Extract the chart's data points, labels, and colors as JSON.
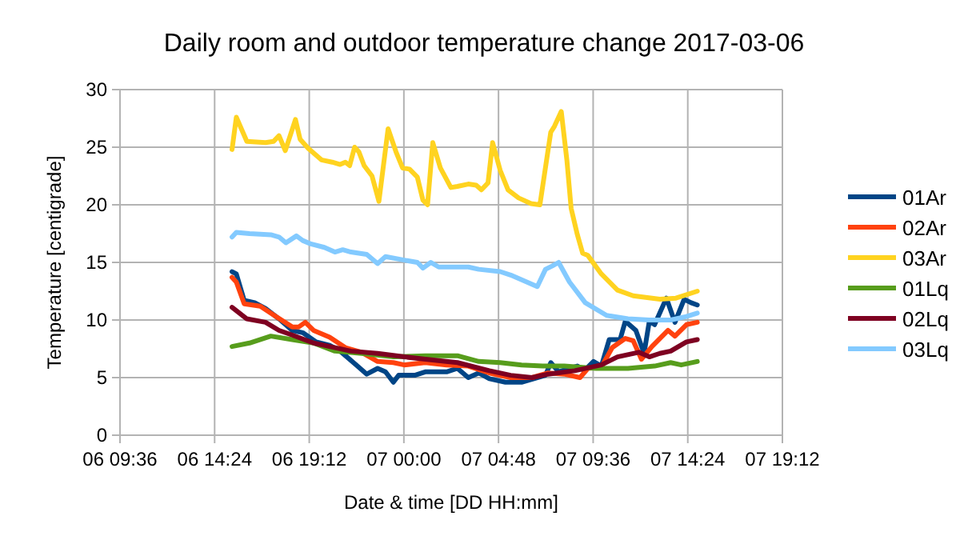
{
  "chart_data": {
    "type": "line",
    "title": "Daily room and outdoor temperature change 2017-03-06",
    "xlabel": "Date & time [DD HH:mm]",
    "ylabel": "Temperature [centigrade]",
    "xlim": [
      "2017-03-06T09:36",
      "2017-03-07T19:12"
    ],
    "xticks": [
      {
        "value": "2017-03-06T09:36",
        "label": "06 09:36"
      },
      {
        "value": "2017-03-06T14:24",
        "label": "06 14:24"
      },
      {
        "value": "2017-03-06T19:12",
        "label": "06 19:12"
      },
      {
        "value": "2017-03-07T00:00",
        "label": "07 00:00"
      },
      {
        "value": "2017-03-07T04:48",
        "label": "07 04:48"
      },
      {
        "value": "2017-03-07T09:36",
        "label": "07 09:36"
      },
      {
        "value": "2017-03-07T14:24",
        "label": "07 14:24"
      },
      {
        "value": "2017-03-07T19:12",
        "label": "07 19:12"
      }
    ],
    "ylim": [
      0,
      30
    ],
    "yticks": [
      0,
      5,
      10,
      15,
      20,
      25,
      30
    ],
    "grid": true,
    "legend": "right",
    "marker": "none",
    "line_style": "solid",
    "series": [
      {
        "name": "01Ar",
        "color": "#004586",
        "x": [
          "2017-03-06T15:17",
          "2017-03-06T15:30",
          "2017-03-06T15:54",
          "2017-03-06T16:26",
          "2017-03-06T16:59",
          "2017-03-06T17:40",
          "2017-03-06T18:20",
          "2017-03-06T18:52",
          "2017-03-06T19:33",
          "2017-03-06T20:14",
          "2017-03-06T20:46",
          "2017-03-06T21:35",
          "2017-03-06T22:07",
          "2017-03-06T22:40",
          "2017-03-06T23:04",
          "2017-03-06T23:28",
          "2017-03-06T23:44",
          "2017-03-07T00:33",
          "2017-03-07T01:05",
          "2017-03-07T02:10",
          "2017-03-07T02:43",
          "2017-03-07T03:16",
          "2017-03-07T03:48",
          "2017-03-07T04:20",
          "2017-03-07T05:09",
          "2017-03-07T05:58",
          "2017-03-07T06:46",
          "2017-03-07T07:11",
          "2017-03-07T07:27",
          "2017-03-07T07:51",
          "2017-03-07T08:24",
          "2017-03-07T08:48",
          "2017-03-07T09:09",
          "2017-03-07T09:37",
          "2017-03-07T10:01",
          "2017-03-07T10:25",
          "2017-03-07T10:58",
          "2017-03-07T11:14",
          "2017-03-07T11:46",
          "2017-03-07T12:11",
          "2017-03-07T12:27",
          "2017-03-07T12:43",
          "2017-03-07T13:19",
          "2017-03-07T13:45",
          "2017-03-07T14:13",
          "2017-03-07T14:34",
          "2017-03-07T14:53"
        ],
        "values": [
          14.2,
          14.0,
          11.7,
          11.5,
          11.0,
          10.1,
          9.1,
          8.9,
          8.1,
          7.8,
          7.3,
          6.1,
          5.3,
          5.8,
          5.5,
          4.6,
          5.2,
          5.2,
          5.5,
          5.5,
          5.8,
          5.0,
          5.4,
          4.9,
          4.6,
          4.6,
          5.0,
          5.2,
          6.3,
          5.5,
          5.8,
          6.0,
          5.6,
          6.4,
          6.0,
          8.3,
          8.3,
          9.9,
          9.1,
          7.1,
          9.9,
          9.6,
          11.9,
          9.8,
          11.8,
          11.5,
          11.3
        ]
      },
      {
        "name": "02Ar",
        "color": "#ff420e",
        "x": [
          "2017-03-06T15:17",
          "2017-03-06T15:30",
          "2017-03-06T15:54",
          "2017-03-06T16:43",
          "2017-03-06T17:31",
          "2017-03-06T18:20",
          "2017-03-06T18:40",
          "2017-03-06T19:00",
          "2017-03-06T19:25",
          "2017-03-06T20:14",
          "2017-03-06T21:02",
          "2017-03-06T21:51",
          "2017-03-06T22:40",
          "2017-03-06T23:28",
          "2017-03-07T00:01",
          "2017-03-07T01:05",
          "2017-03-07T02:10",
          "2017-03-07T03:16",
          "2017-03-07T04:20",
          "2017-03-07T05:25",
          "2017-03-07T06:30",
          "2017-03-07T07:19",
          "2017-03-07T08:08",
          "2017-03-07T08:56",
          "2017-03-07T09:20",
          "2017-03-07T10:01",
          "2017-03-07T10:34",
          "2017-03-07T11:14",
          "2017-03-07T11:38",
          "2017-03-07T12:03",
          "2017-03-07T12:35",
          "2017-03-07T13:24",
          "2017-03-07T13:45",
          "2017-03-07T14:20",
          "2017-03-07T14:53"
        ],
        "values": [
          13.7,
          13.3,
          11.4,
          11.2,
          10.3,
          9.4,
          9.4,
          9.8,
          9.1,
          8.5,
          7.6,
          7.2,
          6.4,
          6.3,
          6.1,
          6.3,
          6.1,
          6.0,
          5.4,
          5.0,
          5.0,
          5.4,
          5.3,
          5.0,
          5.8,
          5.9,
          7.6,
          8.4,
          8.2,
          6.6,
          7.7,
          9.1,
          8.6,
          9.6,
          9.8
        ]
      },
      {
        "name": "03Ar",
        "color": "#ffd320",
        "x": [
          "2017-03-06T15:17",
          "2017-03-06T15:30",
          "2017-03-06T16:02",
          "2017-03-06T16:59",
          "2017-03-06T17:23",
          "2017-03-06T17:40",
          "2017-03-06T17:59",
          "2017-03-06T18:30",
          "2017-03-06T18:44",
          "2017-03-06T19:09",
          "2017-03-06T19:49",
          "2017-03-06T20:22",
          "2017-03-06T20:46",
          "2017-03-06T21:02",
          "2017-03-06T21:15",
          "2017-03-06T21:30",
          "2017-03-06T21:43",
          "2017-03-06T21:59",
          "2017-03-06T22:23",
          "2017-03-06T22:44",
          "2017-03-06T23:12",
          "2017-03-06T23:36",
          "2017-03-06T23:56",
          "2017-03-07T00:17",
          "2017-03-07T00:41",
          "2017-03-07T00:58",
          "2017-03-07T01:12",
          "2017-03-07T01:28",
          "2017-03-07T01:51",
          "2017-03-07T02:23",
          "2017-03-07T02:43",
          "2017-03-07T03:16",
          "2017-03-07T03:40",
          "2017-03-07T03:56",
          "2017-03-07T04:16",
          "2017-03-07T04:30",
          "2017-03-07T04:53",
          "2017-03-07T05:17",
          "2017-03-07T05:49",
          "2017-03-07T06:27",
          "2017-03-07T06:54",
          "2017-03-07T07:27",
          "2017-03-07T07:38",
          "2017-03-07T07:59",
          "2017-03-07T08:16",
          "2017-03-07T08:29",
          "2017-03-07T08:48",
          "2017-03-07T09:04",
          "2017-03-07T09:20",
          "2017-03-07T10:01",
          "2017-03-07T10:50",
          "2017-03-07T11:38",
          "2017-03-07T12:59",
          "2017-03-07T13:48",
          "2017-03-07T14:53"
        ],
        "values": [
          24.8,
          27.6,
          25.5,
          25.4,
          25.5,
          26.0,
          24.7,
          27.4,
          25.7,
          24.9,
          23.9,
          23.7,
          23.5,
          23.7,
          23.4,
          25.0,
          24.6,
          23.4,
          22.5,
          20.3,
          26.6,
          24.6,
          23.2,
          23.1,
          22.4,
          20.4,
          20.0,
          25.4,
          23.2,
          21.5,
          21.6,
          21.8,
          21.7,
          21.3,
          21.9,
          25.4,
          23.0,
          21.3,
          20.6,
          20.1,
          20.0,
          26.3,
          26.8,
          28.1,
          23.9,
          19.7,
          17.4,
          15.8,
          15.6,
          14.0,
          12.6,
          12.1,
          11.8,
          11.9,
          12.5
        ]
      },
      {
        "name": "01Lq",
        "color": "#579d1c",
        "x": [
          "2017-03-06T15:17",
          "2017-03-06T16:10",
          "2017-03-06T17:15",
          "2017-03-06T18:20",
          "2017-03-06T19:25",
          "2017-03-06T20:30",
          "2017-03-06T21:51",
          "2017-03-06T23:28",
          "2017-03-07T01:05",
          "2017-03-07T02:43",
          "2017-03-07T03:48",
          "2017-03-07T04:53",
          "2017-03-07T05:58",
          "2017-03-07T07:02",
          "2017-03-07T08:08",
          "2017-03-07T09:45",
          "2017-03-07T11:22",
          "2017-03-07T12:43",
          "2017-03-07T13:32",
          "2017-03-07T14:04",
          "2017-03-07T14:53"
        ],
        "values": [
          7.7,
          8.0,
          8.6,
          8.3,
          8.0,
          7.3,
          7.1,
          6.8,
          6.9,
          6.9,
          6.4,
          6.3,
          6.1,
          6.0,
          6.0,
          5.8,
          5.8,
          6.0,
          6.3,
          6.1,
          6.4
        ]
      },
      {
        "name": "02Lq",
        "color": "#7e0021",
        "x": [
          "2017-03-06T15:17",
          "2017-03-06T16:02",
          "2017-03-06T16:59",
          "2017-03-06T17:40",
          "2017-03-06T18:20",
          "2017-03-06T19:25",
          "2017-03-06T20:14",
          "2017-03-06T21:19",
          "2017-03-06T22:40",
          "2017-03-07T00:01",
          "2017-03-07T01:05",
          "2017-03-07T02:43",
          "2017-03-07T04:20",
          "2017-03-07T05:25",
          "2017-03-07T06:30",
          "2017-03-07T07:19",
          "2017-03-07T08:40",
          "2017-03-07T10:01",
          "2017-03-07T10:50",
          "2017-03-07T11:55",
          "2017-03-07T12:27",
          "2017-03-07T12:59",
          "2017-03-07T13:32",
          "2017-03-07T14:20",
          "2017-03-07T14:53"
        ],
        "values": [
          11.1,
          10.1,
          9.8,
          9.1,
          8.7,
          8.0,
          7.7,
          7.3,
          7.1,
          6.8,
          6.6,
          6.3,
          5.6,
          5.2,
          5.0,
          5.3,
          5.6,
          6.1,
          6.8,
          7.2,
          6.8,
          7.1,
          7.3,
          8.1,
          8.3
        ]
      },
      {
        "name": "03Lq",
        "color": "#83caff",
        "x": [
          "2017-03-06T15:17",
          "2017-03-06T15:30",
          "2017-03-06T16:10",
          "2017-03-06T17:15",
          "2017-03-06T17:40",
          "2017-03-06T18:01",
          "2017-03-06T18:33",
          "2017-03-06T18:52",
          "2017-03-06T19:17",
          "2017-03-06T19:58",
          "2017-03-06T20:30",
          "2017-03-06T20:54",
          "2017-03-06T21:19",
          "2017-03-06T22:07",
          "2017-03-06T22:40",
          "2017-03-06T23:04",
          "2017-03-07T00:01",
          "2017-03-07T00:41",
          "2017-03-07T00:58",
          "2017-03-07T01:22",
          "2017-03-07T01:46",
          "2017-03-07T03:16",
          "2017-03-07T03:48",
          "2017-03-07T04:53",
          "2017-03-07T05:25",
          "2017-03-07T06:14",
          "2017-03-07T06:46",
          "2017-03-07T07:11",
          "2017-03-07T07:32",
          "2017-03-07T07:51",
          "2017-03-07T08:24",
          "2017-03-07T09:12",
          "2017-03-07T10:17",
          "2017-03-07T11:22",
          "2017-03-07T12:27",
          "2017-03-07T13:32",
          "2017-03-07T14:20",
          "2017-03-07T14:53"
        ],
        "values": [
          17.2,
          17.6,
          17.5,
          17.4,
          17.2,
          16.7,
          17.3,
          16.9,
          16.6,
          16.3,
          15.9,
          16.1,
          15.9,
          15.7,
          14.9,
          15.5,
          15.2,
          15.0,
          14.5,
          15.0,
          14.6,
          14.6,
          14.4,
          14.2,
          13.9,
          13.3,
          12.9,
          14.4,
          14.7,
          15.0,
          13.3,
          11.5,
          10.4,
          10.1,
          10.0,
          10.0,
          10.3,
          10.6
        ]
      }
    ]
  }
}
